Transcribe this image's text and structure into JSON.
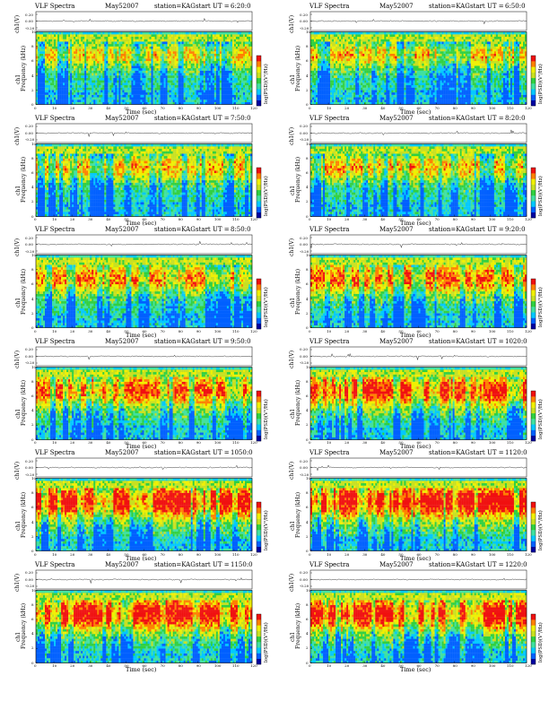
{
  "chart_data": {
    "type": "heatmap",
    "layout": {
      "rows": 6,
      "columns": 2
    },
    "header": {
      "title": "VLF Spectra",
      "date": "May52007",
      "station": "station=KAG",
      "start_label": "start UT ="
    },
    "waveform": {
      "ylabel": "ch1(V)",
      "yticks": [
        "0.20",
        "0.00",
        "-0.20"
      ],
      "ylim": [
        -0.25,
        0.25
      ]
    },
    "spectrogram": {
      "ylabel": "Frequency (kHz)",
      "ylabel_channel": "ch1",
      "xlabel": "Time (sec)",
      "xticks": [
        "0",
        "10",
        "20",
        "30",
        "40",
        "50",
        "60",
        "70",
        "80",
        "90",
        "100",
        "110",
        "120"
      ],
      "yticks": [
        "0",
        "2",
        "4",
        "6",
        "8",
        "10"
      ],
      "xlim": [
        0,
        120
      ],
      "ylim": [
        0,
        10
      ],
      "colorbar_label": "log(PSD)(V²/Hz)",
      "colormap": [
        "#0000a0",
        "#0060ff",
        "#00c8ff",
        "#40e0a0",
        "#30d040",
        "#c8e020",
        "#f0f000",
        "#ff8000",
        "#f01010"
      ]
    },
    "panels": [
      {
        "start": "6:20:0",
        "intensity": 0.2
      },
      {
        "start": "6:50:0",
        "intensity": 0.24
      },
      {
        "start": "7:50:0",
        "intensity": 0.3
      },
      {
        "start": "8:20:0",
        "intensity": 0.3
      },
      {
        "start": "8:50:0",
        "intensity": 0.45
      },
      {
        "start": "9:20:0",
        "intensity": 0.55
      },
      {
        "start": "9:50:0",
        "intensity": 0.58
      },
      {
        "start": "1020:0",
        "intensity": 0.7
      },
      {
        "start": "1050:0",
        "intensity": 0.8
      },
      {
        "start": "1120:0",
        "intensity": 0.82
      },
      {
        "start": "1150:0",
        "intensity": 0.78
      },
      {
        "start": "1220:0",
        "intensity": 0.8
      }
    ]
  }
}
